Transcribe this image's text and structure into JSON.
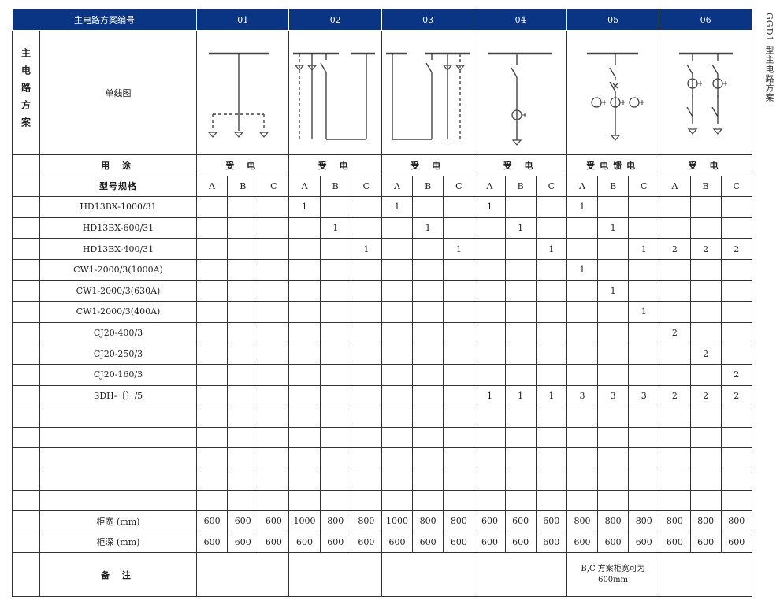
{
  "header": {
    "title": "主电路方案编号",
    "schemes": [
      "01",
      "02",
      "03",
      "04",
      "05",
      "06"
    ]
  },
  "side_title": "GGD1 型主电路方案",
  "diagram_row": {
    "group_label": "主电路方案",
    "label": "单线图"
  },
  "usage_row": {
    "label": "用 途",
    "values": [
      "受 电",
      "受 电",
      "受 电",
      "受 电",
      "受电馈电",
      "受 电"
    ]
  },
  "type_row": {
    "label": "型号规格",
    "sub": [
      "A",
      "B",
      "C",
      "A",
      "B",
      "C",
      "A",
      "B",
      "C",
      "A",
      "B",
      "C",
      "A",
      "B",
      "C",
      "A",
      "B",
      "C"
    ]
  },
  "rows": [
    {
      "label": "HD13BX-1000/31",
      "values": [
        "",
        "",
        "",
        "1",
        "",
        "",
        "1",
        "",
        "",
        "1",
        "",
        "",
        "1",
        "",
        "",
        "",
        "",
        ""
      ]
    },
    {
      "label": "HD13BX-600/31",
      "values": [
        "",
        "",
        "",
        "",
        "1",
        "",
        "",
        "1",
        "",
        "",
        "1",
        "",
        "",
        "1",
        "",
        "",
        "",
        ""
      ]
    },
    {
      "label": "HD13BX-400/31",
      "values": [
        "",
        "",
        "",
        "",
        "",
        "1",
        "",
        "",
        "1",
        "",
        "",
        "1",
        "",
        "",
        "1",
        "2",
        "2",
        "2"
      ]
    },
    {
      "label": "CW1-2000/3(1000A)",
      "values": [
        "",
        "",
        "",
        "",
        "",
        "",
        "",
        "",
        "",
        "",
        "",
        "",
        "1",
        "",
        "",
        "",
        "",
        ""
      ]
    },
    {
      "label": "CW1-2000/3(630A)",
      "values": [
        "",
        "",
        "",
        "",
        "",
        "",
        "",
        "",
        "",
        "",
        "",
        "",
        "",
        "1",
        "",
        "",
        "",
        ""
      ]
    },
    {
      "label": "CW1-2000/3(400A)",
      "values": [
        "",
        "",
        "",
        "",
        "",
        "",
        "",
        "",
        "",
        "",
        "",
        "",
        "",
        "",
        "1",
        "",
        "",
        ""
      ]
    },
    {
      "label": "CJ20-400/3",
      "values": [
        "",
        "",
        "",
        "",
        "",
        "",
        "",
        "",
        "",
        "",
        "",
        "",
        "",
        "",
        "",
        "2",
        "",
        ""
      ]
    },
    {
      "label": "CJ20-250/3",
      "values": [
        "",
        "",
        "",
        "",
        "",
        "",
        "",
        "",
        "",
        "",
        "",
        "",
        "",
        "",
        "",
        "",
        "2",
        ""
      ]
    },
    {
      "label": "CJ20-160/3",
      "values": [
        "",
        "",
        "",
        "",
        "",
        "",
        "",
        "",
        "",
        "",
        "",
        "",
        "",
        "",
        "",
        "",
        "",
        "2"
      ]
    },
    {
      "label": "SDH-〔〕/5",
      "values": [
        "",
        "",
        "",
        "",
        "",
        "",
        "",
        "",
        "",
        "1",
        "1",
        "1",
        "3",
        "3",
        "3",
        "2",
        "2",
        "2"
      ]
    },
    {
      "label": "",
      "values": [
        "",
        "",
        "",
        "",
        "",
        "",
        "",
        "",
        "",
        "",
        "",
        "",
        "",
        "",
        "",
        "",
        "",
        ""
      ]
    },
    {
      "label": "",
      "values": [
        "",
        "",
        "",
        "",
        "",
        "",
        "",
        "",
        "",
        "",
        "",
        "",
        "",
        "",
        "",
        "",
        "",
        ""
      ]
    },
    {
      "label": "",
      "values": [
        "",
        "",
        "",
        "",
        "",
        "",
        "",
        "",
        "",
        "",
        "",
        "",
        "",
        "",
        "",
        "",
        "",
        ""
      ]
    },
    {
      "label": "",
      "values": [
        "",
        "",
        "",
        "",
        "",
        "",
        "",
        "",
        "",
        "",
        "",
        "",
        "",
        "",
        "",
        "",
        "",
        ""
      ]
    },
    {
      "label": "",
      "values": [
        "",
        "",
        "",
        "",
        "",
        "",
        "",
        "",
        "",
        "",
        "",
        "",
        "",
        "",
        "",
        "",
        "",
        ""
      ]
    },
    {
      "label": "柜宽 (mm)",
      "values": [
        "600",
        "600",
        "600",
        "1000",
        "800",
        "800",
        "1000",
        "800",
        "800",
        "600",
        "600",
        "600",
        "800",
        "800",
        "800",
        "800",
        "800",
        "800"
      ]
    },
    {
      "label": "柜深 (mm)",
      "values": [
        "600",
        "600",
        "600",
        "600",
        "600",
        "600",
        "600",
        "600",
        "600",
        "600",
        "600",
        "600",
        "600",
        "600",
        "600",
        "600",
        "600",
        "600"
      ]
    }
  ],
  "remarks": {
    "label": "备 注",
    "values": [
      "",
      "",
      "",
      "",
      "B,C 方案柜宽可为 600mm",
      ""
    ]
  },
  "colors": {
    "header_bg": "#0a3585",
    "header_text": "#ffffff",
    "line": "#333333"
  }
}
